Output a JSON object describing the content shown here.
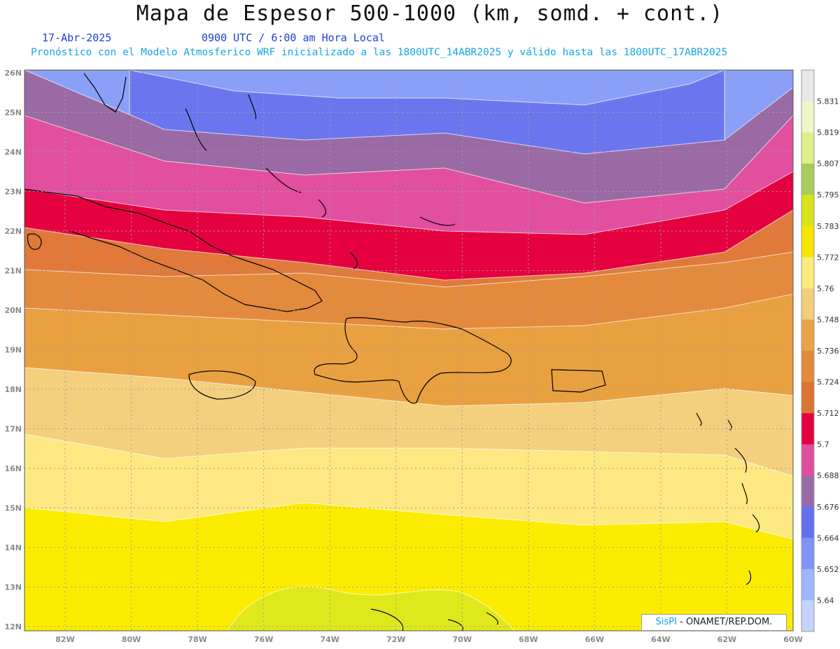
{
  "header": {
    "title": "Mapa de Espesor 500-1000 (km, somd. + cont.)",
    "date": "17-Abr-2025",
    "time": "0900 UTC / 6:00 am Hora Local",
    "description": "Pronóstico con el Modelo Atmosferico WRF inicializado a las 1800UTC_14ABR2025 y válido hasta las  1800UTC_17ABR2025"
  },
  "credit": {
    "brand": "SisPI",
    "org": " - ONAMET/REP.DOM."
  },
  "axes": {
    "lon_ticks": [
      "82W",
      "80W",
      "78W",
      "76W",
      "74W",
      "72W",
      "70W",
      "68W",
      "66W",
      "64W",
      "62W",
      "60W"
    ],
    "lat_ticks": [
      "26N",
      "25N",
      "24N",
      "23N",
      "22N",
      "21N",
      "20N",
      "19N",
      "18N",
      "17N",
      "16N",
      "15N",
      "14N",
      "13N",
      "12N"
    ]
  },
  "colorbar": {
    "labels": [
      "5.831",
      "5.819",
      "5.807",
      "5.795",
      "5.783",
      "5.772",
      "5.76",
      "5.748",
      "5.736",
      "5.724",
      "5.712",
      "5.7",
      "5.688",
      "5.676",
      "5.664",
      "5.652",
      "5.64"
    ],
    "colors": [
      "#e8e8e8",
      "#eff7c8",
      "#ddf08a",
      "#a8cc5a",
      "#d8e31a",
      "#f7e400",
      "#fdeb7a",
      "#f2cd7a",
      "#e8a445",
      "#e38a3a",
      "#dc7532",
      "#e5003f",
      "#e04ea0",
      "#9a6aa8",
      "#6570ee",
      "#7f95f5",
      "#9fb6ff",
      "#c4d2ff"
    ]
  },
  "thickness_bands": {
    "colors": [
      "#fcec00",
      "#fde882",
      "#f4cf7e",
      "#e9a040",
      "#e48a3c",
      "#e0793a",
      "#e5003f",
      "#e24f9f",
      "#9a6aa5",
      "#6b76ee",
      "#8aa0f8"
    ]
  }
}
